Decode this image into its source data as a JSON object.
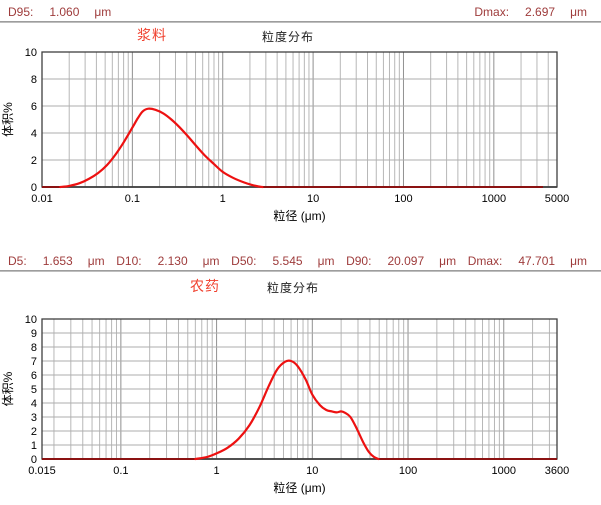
{
  "charts": [
    {
      "sample_name": "浆料",
      "title": "粒度分布",
      "stats": [
        {
          "label": "D95:",
          "value": "1.060",
          "unit": "μm"
        },
        {
          "label": "Dmax:",
          "value": "2.697",
          "unit": "μm"
        }
      ]
    },
    {
      "sample_name": "农药",
      "title": "粒度分布",
      "stats": [
        {
          "label": "D5:",
          "value": "1.653",
          "unit": "μm"
        },
        {
          "label": "D10:",
          "value": "2.130",
          "unit": "μm"
        },
        {
          "label": "D50:",
          "value": "5.545",
          "unit": "μm"
        },
        {
          "label": "D90:",
          "value": "20.097",
          "unit": "μm"
        },
        {
          "label": "Dmax:",
          "value": "47.701",
          "unit": "μm"
        }
      ]
    }
  ],
  "chart_data": [
    {
      "type": "line",
      "series_label": "浆料",
      "title": "粒度分布",
      "xlabel": "粒径 (μm)",
      "ylabel": "体积%",
      "xscale": "log",
      "xlim": [
        0.01,
        5000
      ],
      "ylim": [
        0,
        10
      ],
      "ytick_step": 2,
      "ygrid_step": 2,
      "grid": true,
      "legend": "none",
      "xtick_values": [
        0.01,
        0.1,
        1,
        10,
        100,
        1000,
        5000
      ],
      "xtick_labels": [
        "0.01",
        "0.1",
        "1",
        "10",
        "100",
        "1000",
        "5000"
      ],
      "line_color": "#ed1111",
      "baseline_color": "#8b1212",
      "points": [
        [
          0.01,
          0
        ],
        [
          0.016,
          0
        ],
        [
          0.02,
          0.08
        ],
        [
          0.026,
          0.28
        ],
        [
          0.033,
          0.6
        ],
        [
          0.042,
          1.05
        ],
        [
          0.052,
          1.6
        ],
        [
          0.065,
          2.4
        ],
        [
          0.08,
          3.3
        ],
        [
          0.1,
          4.4
        ],
        [
          0.115,
          5.1
        ],
        [
          0.13,
          5.6
        ],
        [
          0.15,
          5.8
        ],
        [
          0.18,
          5.72
        ],
        [
          0.22,
          5.45
        ],
        [
          0.27,
          5.0
        ],
        [
          0.33,
          4.45
        ],
        [
          0.4,
          3.85
        ],
        [
          0.5,
          3.1
        ],
        [
          0.63,
          2.35
        ],
        [
          0.8,
          1.7
        ],
        [
          1.0,
          1.12
        ],
        [
          1.3,
          0.68
        ],
        [
          1.7,
          0.35
        ],
        [
          2.1,
          0.15
        ],
        [
          2.5,
          0.04
        ],
        [
          2.75,
          0
        ],
        [
          3500,
          0
        ]
      ]
    },
    {
      "type": "line",
      "series_label": "农药",
      "title": "粒度分布",
      "xlabel": "粒径 (μm)",
      "ylabel": "体积%",
      "xscale": "log",
      "xlim": [
        0.015,
        3600
      ],
      "ylim": [
        0,
        10
      ],
      "ytick_step": 1,
      "ygrid_step": 1,
      "grid": true,
      "legend": "none",
      "xtick_values": [
        0.015,
        0.1,
        1,
        10,
        100,
        1000,
        3600
      ],
      "xtick_labels": [
        "0.015",
        "0.1",
        "1",
        "10",
        "100",
        "1000",
        "3600"
      ],
      "line_color": "#ed1111",
      "baseline_color": "#8b1212",
      "points": [
        [
          0.015,
          0
        ],
        [
          0.6,
          0
        ],
        [
          0.8,
          0.15
        ],
        [
          1.0,
          0.4
        ],
        [
          1.3,
          0.8
        ],
        [
          1.7,
          1.45
        ],
        [
          2.2,
          2.4
        ],
        [
          2.8,
          3.7
        ],
        [
          3.5,
          5.2
        ],
        [
          4.3,
          6.4
        ],
        [
          5.2,
          6.95
        ],
        [
          6.0,
          7.0
        ],
        [
          7.0,
          6.65
        ],
        [
          8.5,
          5.7
        ],
        [
          10,
          4.6
        ],
        [
          12,
          3.85
        ],
        [
          14,
          3.5
        ],
        [
          16,
          3.4
        ],
        [
          18,
          3.33
        ],
        [
          20,
          3.4
        ],
        [
          22,
          3.3
        ],
        [
          25,
          3.0
        ],
        [
          29,
          2.2
        ],
        [
          34,
          1.2
        ],
        [
          39,
          0.5
        ],
        [
          44,
          0.15
        ],
        [
          49,
          0
        ],
        [
          3600,
          0
        ]
      ]
    }
  ]
}
